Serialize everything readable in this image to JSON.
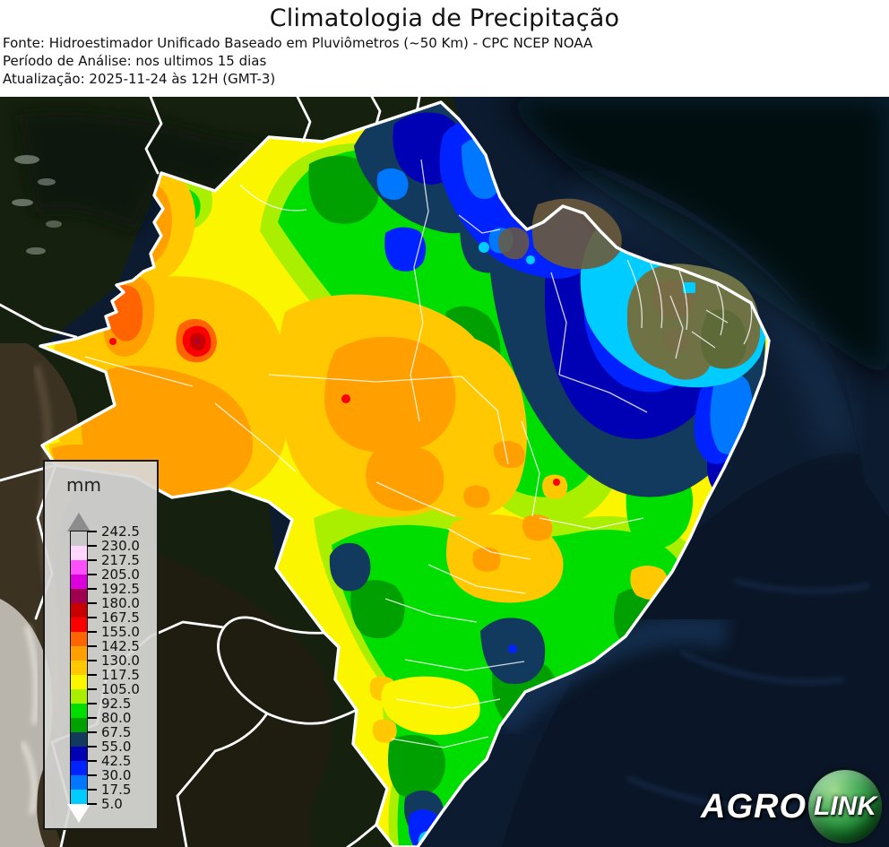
{
  "header": {
    "title": "Climatologia de Precipitação",
    "source": "Fonte: Hidroestimador Unificado Baseado em Pluviômetros (~50 Km) - CPC NCEP NOAA",
    "period": "Período de Análise: nos ultimos 15 dias",
    "updated": "Atualização: 2025-11-24 às 12H (GMT-3)"
  },
  "legend": {
    "title": "mm",
    "ticks": [
      "242.5",
      "230.0",
      "217.5",
      "205.0",
      "192.5",
      "180.0",
      "167.5",
      "155.0",
      "142.5",
      "130.0",
      "117.5",
      "105.0",
      "92.5",
      "80.0",
      "67.5",
      "55.0",
      "42.5",
      "30.0",
      "17.5",
      "5.0"
    ],
    "below_color": "#FFFFFF"
  },
  "map": {
    "palette": {
      "5.0": "#00CCFF",
      "17.5": "#0077FF",
      "30.0": "#0022FF",
      "42.5": "#0000B4",
      "55.0": "#123A5E",
      "67.5": "#00A000",
      "80.0": "#00DE00",
      "92.5": "#AAEE00",
      "105.0": "#FCF500",
      "117.5": "#FFC800",
      "130.0": "#FFA000",
      "142.5": "#FF6400",
      "155.0": "#FB0000",
      "167.5": "#C80000",
      "180.0": "#A00050",
      "192.5": "#DC00DC",
      "205.0": "#FF50FF",
      "217.5": "#FFD7FF",
      "230.0": "#C8C8C8",
      "242.5": "#8C8C8C"
    }
  },
  "logo": {
    "text1": "AGRO",
    "text2": "LINK",
    "sphere_color": "#1E8C34"
  }
}
